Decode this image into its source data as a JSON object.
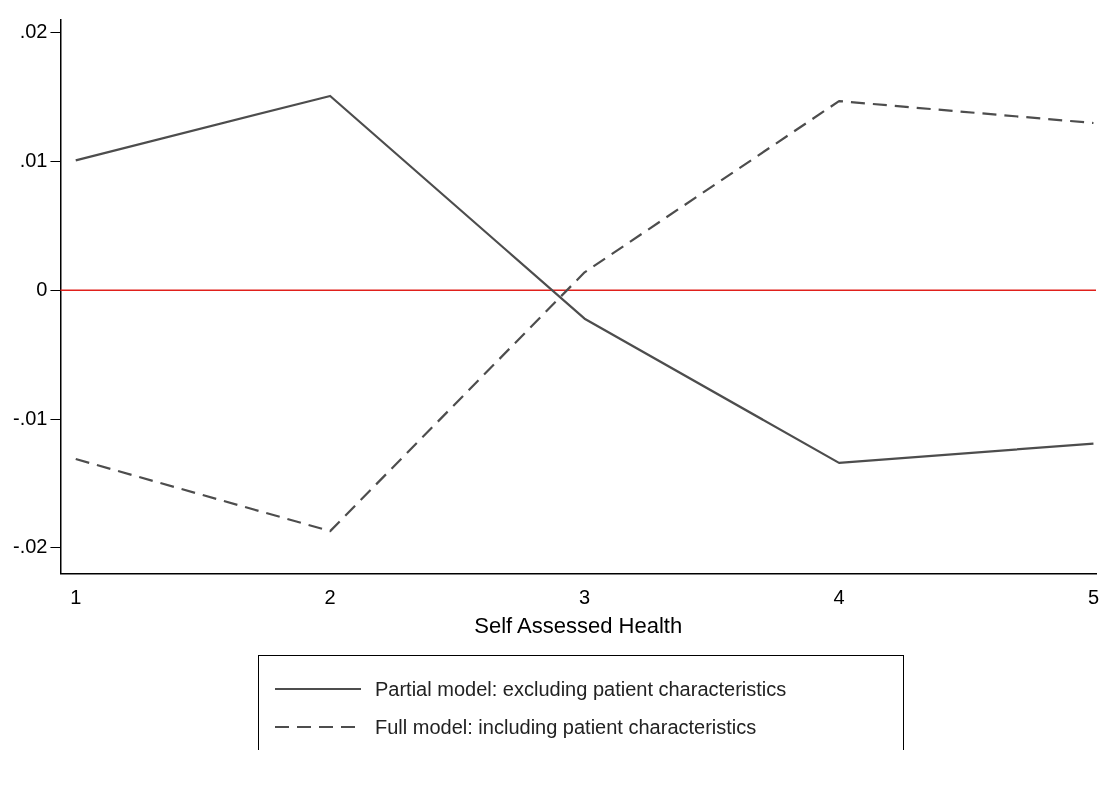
{
  "chart_data": {
    "type": "line",
    "xlabel": "Self Assessed Health",
    "x": [
      1,
      2,
      3,
      4,
      5
    ],
    "series": [
      {
        "name": "Partial model: excluding patient characteristics",
        "color": "#4d4d4d",
        "line_style": "solid",
        "values": [
          0.0101,
          0.0151,
          -0.0022,
          -0.0134,
          -0.0119
        ]
      },
      {
        "name": "Full model: including patient characteristics",
        "color": "#4d4d4d",
        "line_style": "dashed",
        "values": [
          -0.0131,
          -0.0187,
          0.0014,
          0.0147,
          0.013
        ]
      }
    ],
    "xlim": [
      0.94,
      5.01
    ],
    "xticks": [
      1,
      2,
      3,
      4,
      5
    ],
    "ylim": [
      -0.022,
      0.021
    ],
    "yticks": [
      {
        "value": -0.02,
        "label": "-.02"
      },
      {
        "value": -0.01,
        "label": "-.01"
      },
      0,
      {
        "value": 0.01,
        "label": ".01"
      },
      {
        "value": 0.02,
        "label": ".02"
      }
    ],
    "ref_lines": [
      {
        "axis": "y",
        "value": 0,
        "color": "#e0201b"
      }
    ],
    "grid": false,
    "legend": "bottom",
    "marker": "none"
  }
}
